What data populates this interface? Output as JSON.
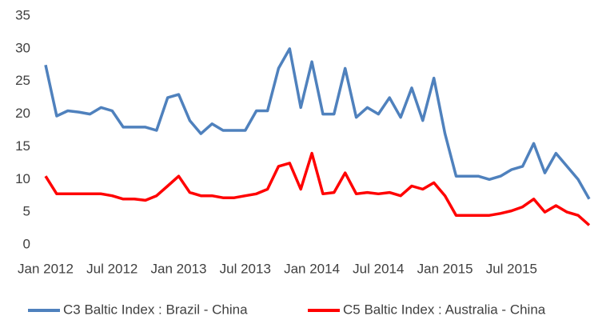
{
  "chart_data": {
    "type": "line",
    "categories": [
      "Jan 2012",
      null,
      null,
      null,
      null,
      null,
      "Jul 2012",
      null,
      null,
      null,
      null,
      null,
      "Jan 2013",
      null,
      null,
      null,
      null,
      null,
      "Jul 2013",
      null,
      null,
      null,
      null,
      null,
      "Jan 2014",
      null,
      null,
      null,
      null,
      null,
      "Jul 2014",
      null,
      null,
      null,
      null,
      null,
      "Jan 2015",
      null,
      null,
      null,
      null,
      null,
      "Jul 2015",
      null,
      null,
      null,
      null,
      null,
      null,
      null
    ],
    "series": [
      {
        "name": "C3 Baltic Index : Brazil - China",
        "color": "#4f81bd",
        "values": [
          27.5,
          19.7,
          20.5,
          20.3,
          20,
          21,
          20.5,
          18,
          18,
          18,
          17.5,
          22.5,
          23,
          19,
          17,
          18.5,
          17.5,
          17.5,
          17.5,
          20.5,
          20.5,
          27,
          30,
          21,
          28,
          20,
          20,
          27,
          19.5,
          21,
          20,
          22.5,
          19.5,
          24,
          19,
          25.5,
          17,
          10.5,
          10.5,
          10.5,
          10,
          10.5,
          11.5,
          12,
          15.5,
          11,
          14,
          12,
          10,
          7
        ]
      },
      {
        "name": "C5 Baltic Index : Australia - China",
        "color": "#ff0000",
        "values": [
          10.5,
          7.8,
          7.8,
          7.8,
          7.8,
          7.8,
          7.5,
          7,
          7,
          6.8,
          7.5,
          9,
          10.5,
          8,
          7.5,
          7.5,
          7.2,
          7.2,
          7.5,
          7.8,
          8.5,
          12,
          12.5,
          8.5,
          14,
          7.8,
          8,
          11,
          7.8,
          8,
          7.8,
          8,
          7.5,
          9,
          8.5,
          9.5,
          7.5,
          4.5,
          4.5,
          4.5,
          4.5,
          4.8,
          5.2,
          5.8,
          7,
          5,
          6,
          5,
          4.5,
          3
        ]
      }
    ],
    "ylim": [
      0,
      35
    ],
    "yticks": [
      0,
      5,
      10,
      15,
      20,
      25,
      30,
      35
    ],
    "grid": false,
    "legend": "bottom"
  }
}
